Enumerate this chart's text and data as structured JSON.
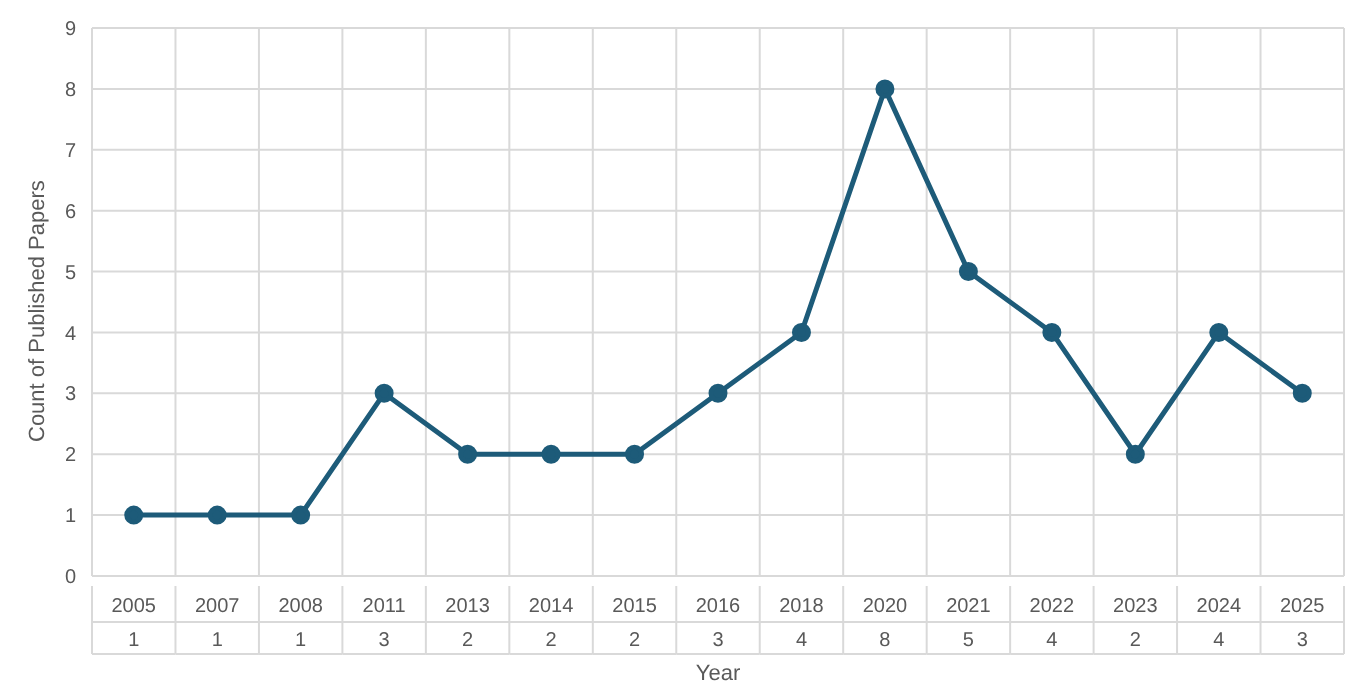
{
  "chart_data": {
    "type": "line",
    "xlabel": "Year",
    "ylabel": "Count of Published Papers",
    "categories": [
      "2005",
      "2007",
      "2008",
      "2011",
      "2013",
      "2014",
      "2015",
      "2016",
      "2018",
      "2020",
      "2021",
      "2022",
      "2023",
      "2024",
      "2025"
    ],
    "series": [
      {
        "color": "#1d5b79",
        "values": [
          1,
          1,
          1,
          3,
          2,
          2,
          2,
          3,
          4,
          8,
          5,
          4,
          2,
          4,
          3
        ]
      }
    ],
    "ylim": [
      0,
      9
    ],
    "yticks": [
      0,
      1,
      2,
      3,
      4,
      5,
      6,
      7,
      8,
      9
    ],
    "grid": true,
    "marker": "circle",
    "line_style": "solid",
    "data_labels": true,
    "legend": false
  }
}
